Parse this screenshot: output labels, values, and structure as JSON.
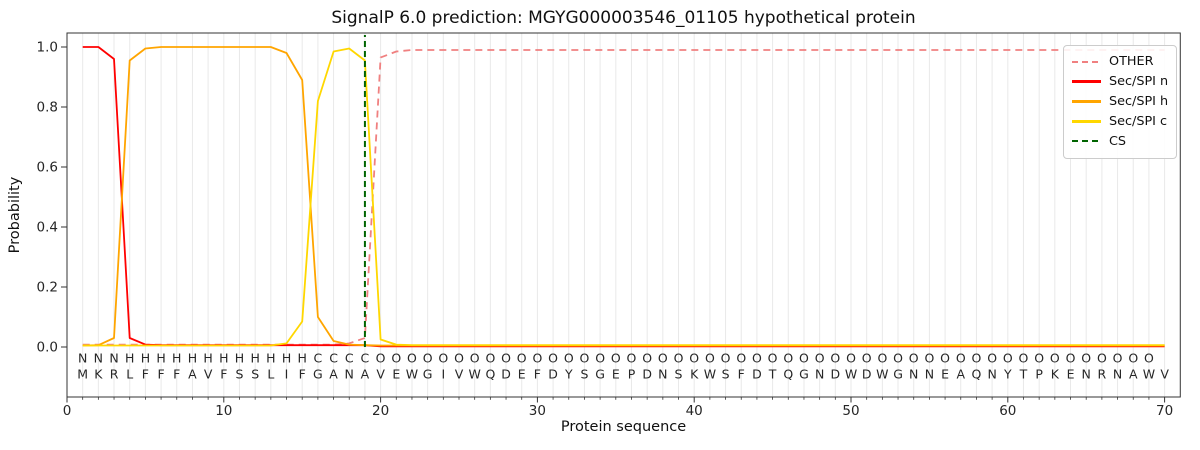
{
  "chart_data": {
    "type": "line",
    "title": "SignalP 6.0 prediction: MGYG000003546_01105 hypothetical protein",
    "xlabel": "Protein sequence",
    "ylabel": "Probability",
    "xlim": [
      0,
      71
    ],
    "ylim": [
      -0.167,
      1.047
    ],
    "xticks": [
      0,
      10,
      20,
      30,
      40,
      50,
      60,
      70
    ],
    "ytick_labels": [
      "0.0",
      "0.2",
      "0.4",
      "0.6",
      "0.8",
      "1.0"
    ],
    "grid": "light vertical gridline at every residue position 1-70",
    "legend_position": "upper right",
    "x_positions": "integers 1 to 70",
    "series": [
      {
        "name": "OTHER",
        "color": "#f08080",
        "dash": true,
        "values": [
          0.008,
          0.008,
          0.008,
          0.008,
          0.008,
          0.008,
          0.008,
          0.008,
          0.008,
          0.008,
          0.008,
          0.008,
          0.008,
          0.008,
          0.008,
          0.008,
          0.008,
          0.012,
          0.03,
          0.965,
          0.985,
          0.99,
          0.99,
          0.99,
          0.99,
          0.99,
          0.99,
          0.99,
          0.99,
          0.99,
          0.99,
          0.99,
          0.99,
          0.99,
          0.99,
          0.99,
          0.99,
          0.99,
          0.99,
          0.99,
          0.99,
          0.99,
          0.99,
          0.99,
          0.99,
          0.99,
          0.99,
          0.99,
          0.99,
          0.99,
          0.99,
          0.99,
          0.99,
          0.99,
          0.99,
          0.99,
          0.99,
          0.99,
          0.99,
          0.99,
          0.99,
          0.99,
          0.99,
          0.99,
          0.99,
          0.99,
          0.99,
          0.99,
          0.99,
          0.99
        ]
      },
      {
        "name": "Sec/SPI n",
        "color": "#ff0000",
        "dash": false,
        "values": [
          1.0,
          1.0,
          0.96,
          0.03,
          0.008,
          0.006,
          0.006,
          0.006,
          0.006,
          0.006,
          0.006,
          0.006,
          0.006,
          0.006,
          0.006,
          0.006,
          0.006,
          0.006,
          0.006,
          0.002,
          0.002,
          0.002,
          0.002,
          0.002,
          0.002,
          0.002,
          0.002,
          0.002,
          0.002,
          0.002,
          0.002,
          0.002,
          0.002,
          0.002,
          0.002,
          0.002,
          0.002,
          0.002,
          0.002,
          0.002,
          0.002,
          0.002,
          0.002,
          0.002,
          0.002,
          0.002,
          0.002,
          0.002,
          0.002,
          0.002,
          0.002,
          0.002,
          0.002,
          0.002,
          0.002,
          0.002,
          0.002,
          0.002,
          0.002,
          0.002,
          0.002,
          0.002,
          0.002,
          0.002,
          0.002,
          0.002,
          0.002,
          0.002,
          0.002,
          0.002
        ]
      },
      {
        "name": "Sec/SPI h",
        "color": "#ffa500",
        "dash": false,
        "values": [
          0.005,
          0.006,
          0.03,
          0.955,
          0.995,
          1.0,
          1.0,
          1.0,
          1.0,
          1.0,
          1.0,
          1.0,
          1.0,
          0.98,
          0.89,
          0.1,
          0.02,
          0.008,
          0.006,
          0.005,
          0.005,
          0.005,
          0.005,
          0.005,
          0.005,
          0.005,
          0.005,
          0.005,
          0.005,
          0.005,
          0.005,
          0.005,
          0.005,
          0.005,
          0.005,
          0.005,
          0.005,
          0.005,
          0.005,
          0.005,
          0.005,
          0.005,
          0.005,
          0.005,
          0.005,
          0.005,
          0.005,
          0.005,
          0.005,
          0.005,
          0.005,
          0.005,
          0.005,
          0.005,
          0.005,
          0.005,
          0.005,
          0.005,
          0.005,
          0.005,
          0.005,
          0.005,
          0.005,
          0.005,
          0.005,
          0.005,
          0.005,
          0.005,
          0.005,
          0.005
        ]
      },
      {
        "name": "Sec/SPI c",
        "color": "#ffd700",
        "dash": false,
        "values": [
          0.005,
          0.005,
          0.005,
          0.005,
          0.005,
          0.005,
          0.005,
          0.005,
          0.005,
          0.005,
          0.005,
          0.005,
          0.005,
          0.012,
          0.085,
          0.82,
          0.985,
          0.995,
          0.955,
          0.025,
          0.008,
          0.006,
          0.006,
          0.006,
          0.006,
          0.006,
          0.006,
          0.006,
          0.006,
          0.006,
          0.006,
          0.006,
          0.006,
          0.006,
          0.006,
          0.006,
          0.006,
          0.006,
          0.006,
          0.006,
          0.006,
          0.006,
          0.006,
          0.006,
          0.006,
          0.006,
          0.006,
          0.006,
          0.006,
          0.006,
          0.006,
          0.006,
          0.006,
          0.006,
          0.006,
          0.006,
          0.006,
          0.006,
          0.006,
          0.006,
          0.006,
          0.006,
          0.006,
          0.006,
          0.006,
          0.006,
          0.006,
          0.006,
          0.006,
          0.006
        ]
      }
    ],
    "cs_line": {
      "name": "CS",
      "x": 19,
      "color": "#006400",
      "dash": true
    },
    "sequence": "MKRLFFFAVFSSLIFGANAVEWGIVWQDEFDYSGEPDNSKWSFDTQGNDWDWGNNEAQNYTPKENRNAWV",
    "region_labels": "NNNHHHHHHHHHHHHCCCCOOOOOOOOOOOOOOOOOOOOOOOOOOOOOOOOOOOOOOOOOOOOOOOOOO",
    "region_colors": {
      "N": "#ff0000",
      "H": "#ffa500",
      "C": "#ffd700",
      "O": "#808080"
    },
    "sequence_color": "#1a1a1a",
    "grid_color": "#e9e9e9",
    "spine_color": "#333333"
  }
}
